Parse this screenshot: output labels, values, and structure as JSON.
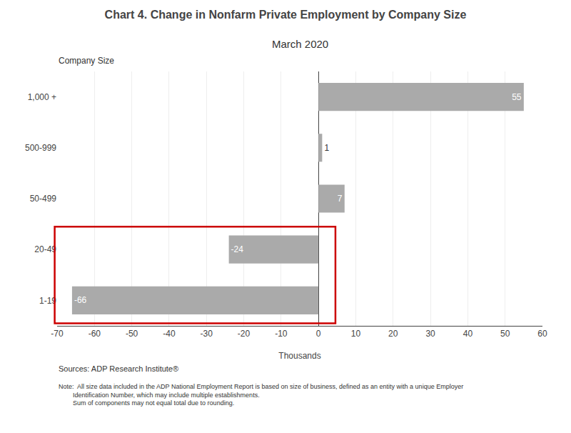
{
  "chart_data": {
    "type": "bar",
    "orientation": "horizontal",
    "title": "Chart 4. Change in Nonfarm Private Employment by Company Size",
    "subtitle": "March 2020",
    "ylabel": "Company Size",
    "xlabel": "Thousands",
    "categories": [
      "1,000 +",
      "500-999",
      "50-499",
      "20-49",
      "1-19"
    ],
    "values": [
      55,
      1,
      7,
      -24,
      -66
    ],
    "color": "#aaaaaa",
    "xlim": [
      -70,
      60
    ],
    "xticks": [
      -70,
      -60,
      -50,
      -40,
      -30,
      -20,
      -10,
      0,
      10,
      20,
      30,
      40,
      50,
      60
    ],
    "grid": true,
    "data_labels": true,
    "annotations": [
      "Sources: ADP Research Institute®",
      "Note:  All size data included in the ADP National Employment Report is based on size of business, defined as an entity with a unique Employer",
      "        Identification Number, which may include multiple establishments.",
      "        Sum of components may not equal total due to rounding."
    ]
  }
}
